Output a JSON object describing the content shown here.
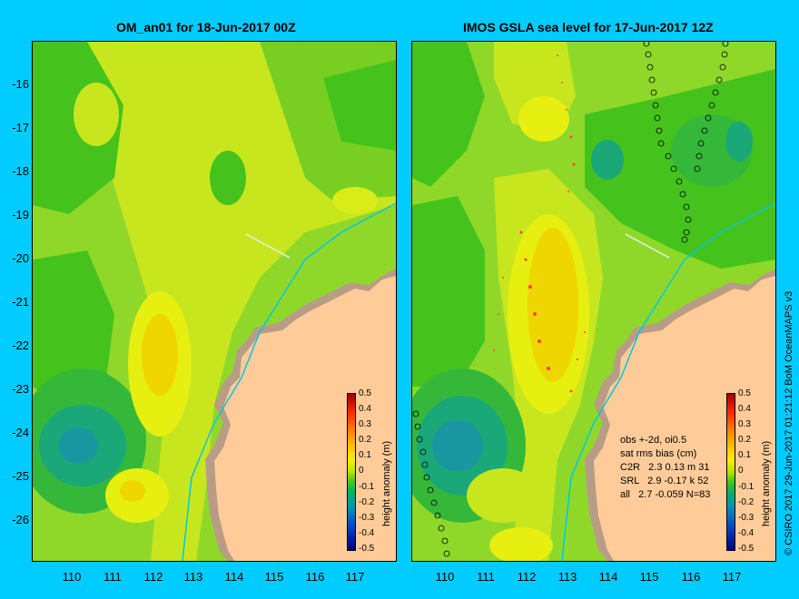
{
  "left_panel": {
    "title": "OM_an01 for 18-Jun-2017 00Z"
  },
  "right_panel": {
    "title": "IMOS GSLA sea level  for 17-Jun-2017 12Z",
    "stats": {
      "line1": "obs +-2d, oi0.5",
      "line2": "sat rms bias (cm)",
      "line3": "C2R   2.3 0.13 m 31",
      "line4": "SRL   2.9 -0.17 k 52",
      "line5": "all   2.7 -0.059 N=83"
    }
  },
  "axes": {
    "y_ticks": [
      "-16",
      "-17",
      "-18",
      "-19",
      "-20",
      "-21",
      "-22",
      "-23",
      "-24",
      "-25",
      "-26"
    ],
    "x_ticks": [
      "110",
      "111",
      "112",
      "113",
      "114",
      "115",
      "116",
      "117"
    ]
  },
  "colorbar": {
    "title": "height anomaly (m)",
    "ticks": [
      "0.5",
      "0.4",
      "0.3",
      "0.2",
      "0.1",
      "0",
      "-0.1",
      "-0.2",
      "-0.3",
      "-0.4",
      "-0.5"
    ]
  },
  "credit": "© CSIRO 2017   29-Jun-2017 01:21:12 BoM OceanMAPS v3",
  "colors": {
    "background": "#00ccff",
    "land": "#ffcc99",
    "coast_shelf": "#b89c86"
  }
}
